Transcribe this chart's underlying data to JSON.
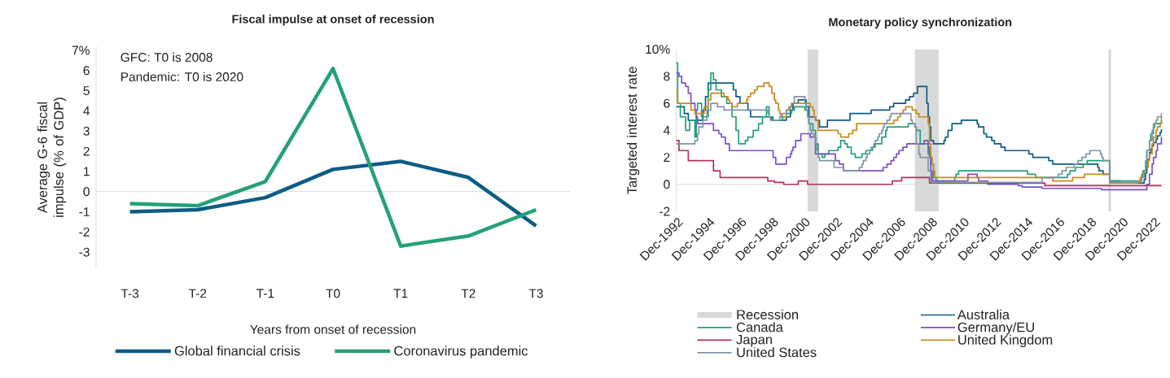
{
  "chart_data": [
    {
      "type": "line",
      "title": "Fiscal impulse at onset of recession",
      "xlabel": "Years from onset of recession",
      "ylabel": "Average G-6 fiscal impulse (% of GDP)",
      "categories": [
        "T-3",
        "T-2",
        "T-1",
        "T0",
        "T1",
        "T2",
        "T3"
      ],
      "ylim": [
        -3.8,
        7.2
      ],
      "yticks": [
        -3,
        -2,
        -1,
        0,
        1,
        2,
        3,
        4,
        5,
        6,
        {
          "value": 7,
          "label": "7%"
        }
      ],
      "annotations": [
        "GFC: T0 is 2008",
        "Pandemic: T0 is 2020"
      ],
      "ref_lines": [
        {
          "axis": "y",
          "value": 0,
          "color": "#d9d9d9"
        }
      ],
      "legend": "bottom",
      "series": [
        {
          "name": "Global financial crisis",
          "color": "#0d5c84",
          "values": [
            -1.0,
            -0.9,
            -0.3,
            1.1,
            1.5,
            0.7,
            -1.7
          ]
        },
        {
          "name": "Coronavirus pandemic",
          "color": "#25a07a",
          "values": [
            -0.6,
            -0.7,
            0.5,
            6.1,
            -2.7,
            -2.2,
            -0.9
          ]
        }
      ]
    },
    {
      "type": "step",
      "title": "Monetary policy synchronization",
      "ylabel": "Targeted interest rate",
      "xlim": [
        "1992-12",
        "2023-08"
      ],
      "xticks": [
        {
          "value": "1992-12",
          "label": "Dec-1992"
        },
        {
          "value": "1994-12",
          "label": "Dec-1994"
        },
        {
          "value": "1996-12",
          "label": "Dec-1996"
        },
        {
          "value": "1998-12",
          "label": "Dec-1998"
        },
        {
          "value": "2000-12",
          "label": "Dec-2000"
        },
        {
          "value": "2002-12",
          "label": "Dec-2002"
        },
        {
          "value": "2004-12",
          "label": "Dec-2004"
        },
        {
          "value": "2006-12",
          "label": "Dec-2006"
        },
        {
          "value": "2008-12",
          "label": "Dec-2008"
        },
        {
          "value": "2010-12",
          "label": "Dec-2010"
        },
        {
          "value": "2012-12",
          "label": "Dec-2012"
        },
        {
          "value": "2014-12",
          "label": "Dec-2014"
        },
        {
          "value": "2016-12",
          "label": "Dec-2016"
        },
        {
          "value": "2018-12",
          "label": "Dec-2018"
        },
        {
          "value": "2020-12",
          "label": "Dec-2020"
        },
        {
          "value": "2022-12",
          "label": "Dec-2022"
        }
      ],
      "ylim": [
        -2,
        10
      ],
      "yticks": [
        -2,
        0,
        2,
        4,
        6,
        8,
        {
          "value": 10,
          "label": "10%"
        }
      ],
      "bands": [
        {
          "axis": "x",
          "from": "2001-03",
          "to": "2001-11",
          "label": "Recession",
          "color": "#d9d9d9"
        },
        {
          "axis": "x",
          "from": "2007-12",
          "to": "2009-06",
          "color": "#d9d9d9"
        },
        {
          "axis": "x",
          "from": "2020-02",
          "to": "2020-04",
          "color": "#d9d9d9"
        }
      ],
      "ref_lines": [
        {
          "axis": "y",
          "value": 0,
          "color": "#d9d9d9"
        }
      ],
      "legend": "bottom",
      "series": [
        {
          "name": "Australia",
          "color": "#0d5c84",
          "x": [
            "1992-12",
            "1993-06",
            "1993-09",
            "1994-08",
            "1994-10",
            "1994-12",
            "1996-07",
            "1996-09",
            "1996-12",
            "1997-06",
            "1997-08",
            "1998-12",
            "1999-11",
            "2000-02",
            "2000-04",
            "2000-08",
            "2001-02",
            "2001-04",
            "2001-09",
            "2001-12",
            "2002-06",
            "2003-11",
            "2005-03",
            "2006-05",
            "2006-08",
            "2007-05",
            "2007-08",
            "2007-11",
            "2008-02",
            "2008-09",
            "2008-10",
            "2008-11",
            "2008-12",
            "2009-02",
            "2009-10",
            "2009-11",
            "2010-01",
            "2010-04",
            "2010-11",
            "2011-11",
            "2011-12",
            "2012-04",
            "2012-06",
            "2012-10",
            "2012-12",
            "2013-05",
            "2013-08",
            "2015-02",
            "2015-05",
            "2016-05",
            "2016-08",
            "2019-06",
            "2019-07",
            "2019-10",
            "2020-03",
            "2020-11",
            "2022-05",
            "2022-06",
            "2022-07",
            "2022-08",
            "2022-09",
            "2022-10",
            "2022-11",
            "2022-12",
            "2023-02",
            "2023-03",
            "2023-05",
            "2023-06"
          ],
          "values": [
            5.75,
            5.25,
            4.75,
            5.5,
            6.5,
            7.5,
            7.0,
            6.5,
            6.0,
            5.5,
            5.0,
            4.75,
            5.0,
            5.5,
            6.0,
            6.25,
            5.75,
            5.0,
            4.75,
            4.25,
            4.75,
            5.25,
            5.5,
            5.75,
            6.0,
            6.25,
            6.5,
            6.75,
            7.25,
            6.0,
            5.0,
            4.25,
            3.25,
            3.0,
            3.25,
            3.5,
            4.0,
            4.5,
            4.75,
            4.5,
            4.25,
            3.75,
            3.5,
            3.25,
            3.0,
            2.75,
            2.5,
            2.25,
            2.0,
            1.75,
            1.5,
            1.25,
            1.0,
            0.75,
            0.25,
            0.1,
            0.35,
            0.85,
            1.35,
            1.85,
            2.35,
            2.6,
            2.85,
            3.1,
            3.35,
            3.6,
            3.85,
            4.1
          ]
        },
        {
          "name": "Canada",
          "color": "#22a07a",
          "x": [
            "1992-12",
            "1993-01",
            "1993-03",
            "1993-07",
            "1993-10",
            "1994-02",
            "1994-03",
            "1994-04",
            "1994-07",
            "1994-12",
            "1995-02",
            "1995-04",
            "1995-06",
            "1995-10",
            "1996-02",
            "1996-06",
            "1996-09",
            "1996-11",
            "1997-04",
            "1997-06",
            "1997-10",
            "1998-02",
            "1998-05",
            "1998-08",
            "1998-10",
            "1999-01",
            "1999-08",
            "1999-11",
            "2000-03",
            "2000-05",
            "2001-01",
            "2001-03",
            "2001-04",
            "2001-07",
            "2001-09",
            "2001-11",
            "2002-02",
            "2002-04",
            "2002-07",
            "2003-02",
            "2003-04",
            "2003-07",
            "2003-09",
            "2003-12",
            "2004-03",
            "2004-08",
            "2004-11",
            "2005-04",
            "2005-06",
            "2005-11",
            "2006-02",
            "2006-03",
            "2007-07",
            "2007-12",
            "2008-01",
            "2008-04",
            "2008-10",
            "2008-12",
            "2009-02",
            "2009-04",
            "2010-06",
            "2010-07",
            "2010-09",
            "2015-01",
            "2015-07",
            "2017-07",
            "2017-09",
            "2018-01",
            "2018-07",
            "2018-10",
            "2020-03",
            "2022-03",
            "2022-04",
            "2022-06",
            "2022-07",
            "2022-09",
            "2022-10",
            "2022-12",
            "2023-01",
            "2023-06"
          ],
          "values": [
            9.0,
            6.0,
            5.0,
            4.0,
            4.75,
            3.5,
            5.5,
            6.0,
            5.0,
            7.0,
            8.25,
            7.75,
            7.0,
            6.5,
            6.0,
            5.0,
            4.0,
            3.0,
            3.25,
            3.5,
            4.0,
            4.5,
            5.0,
            5.75,
            5.0,
            4.75,
            5.0,
            5.25,
            5.5,
            5.75,
            5.5,
            5.0,
            4.5,
            4.0,
            3.0,
            2.25,
            2.0,
            2.25,
            2.5,
            2.75,
            3.25,
            3.0,
            2.75,
            2.25,
            2.0,
            2.25,
            2.5,
            2.75,
            3.0,
            3.5,
            4.0,
            4.25,
            4.5,
            4.25,
            4.0,
            3.0,
            2.25,
            1.5,
            0.5,
            0.25,
            0.5,
            0.75,
            1.0,
            0.75,
            0.5,
            0.75,
            1.0,
            1.25,
            1.5,
            1.75,
            0.25,
            0.5,
            1.0,
            1.5,
            2.5,
            3.25,
            3.75,
            4.25,
            4.5,
            4.75
          ]
        },
        {
          "name": "Germany/EU",
          "color": "#7b4fc9",
          "x": [
            "1992-12",
            "1993-02",
            "1993-04",
            "1993-07",
            "1993-09",
            "1993-11",
            "1994-02",
            "1994-03",
            "1994-04",
            "1995-04",
            "1995-08",
            "1995-10",
            "1996-01",
            "1996-04",
            "1999-01",
            "1999-03",
            "1999-11",
            "2000-02",
            "2000-03",
            "2000-04",
            "2000-06",
            "2000-10",
            "2001-05",
            "2001-09",
            "2002-12",
            "2003-03",
            "2003-06",
            "2005-12",
            "2006-03",
            "2006-06",
            "2006-08",
            "2006-10",
            "2006-12",
            "2007-03",
            "2007-06",
            "2008-07",
            "2008-10",
            "2008-11",
            "2008-12",
            "2009-01",
            "2011-04",
            "2011-11",
            "2011-12",
            "2012-07",
            "2014-06",
            "2014-09",
            "2015-12",
            "2019-09",
            "2022-07",
            "2022-09",
            "2022-11",
            "2022-12",
            "2023-02",
            "2023-03",
            "2023-06"
          ],
          "values": [
            8.25,
            8.0,
            7.5,
            7.25,
            6.75,
            6.0,
            5.5,
            5.0,
            4.5,
            4.0,
            3.75,
            3.5,
            3.0,
            2.5,
            2.0,
            1.5,
            2.0,
            2.25,
            2.5,
            2.75,
            3.25,
            3.75,
            3.5,
            2.25,
            1.75,
            1.5,
            1.0,
            1.25,
            1.5,
            1.75,
            2.0,
            2.25,
            2.5,
            2.75,
            3.0,
            3.25,
            2.75,
            2.0,
            1.0,
            0.25,
            0.75,
            0.5,
            0.25,
            0.0,
            -0.1,
            -0.2,
            -0.3,
            -0.4,
            0.0,
            0.75,
            1.5,
            2.0,
            2.5,
            3.0,
            3.5
          ]
        },
        {
          "name": "Japan",
          "color": "#b5305a",
          "x": [
            "1992-12",
            "1993-02",
            "1993-09",
            "1995-04",
            "1995-09",
            "1998-09",
            "1999-02",
            "1999-09",
            "2000-08",
            "2001-03",
            "2006-07",
            "2007-02",
            "2008-11",
            "2016-02",
            "2023-06"
          ],
          "values": [
            3.25,
            2.5,
            1.75,
            1.0,
            0.5,
            0.25,
            0.15,
            0.0,
            0.25,
            0.0,
            0.25,
            0.5,
            0.1,
            -0.1,
            -0.1
          ]
        },
        {
          "name": "United Kingdom",
          "color": "#c98a1f",
          "x": [
            "1992-12",
            "1993-01",
            "1993-11",
            "1994-02",
            "1994-09",
            "1994-12",
            "1995-02",
            "1995-12",
            "1996-03",
            "1996-04",
            "1996-06",
            "1996-10",
            "1997-05",
            "1997-06",
            "1997-08",
            "1997-11",
            "1998-01",
            "1998-06",
            "1998-10",
            "1998-12",
            "1999-02",
            "1999-03",
            "1999-05",
            "1999-06",
            "1999-07",
            "1999-11",
            "2000-01",
            "2000-03",
            "2001-05",
            "2001-07",
            "2001-08",
            "2001-09",
            "2001-11",
            "2003-02",
            "2003-04",
            "2003-10",
            "2004-01",
            "2004-04",
            "2006-08",
            "2006-11",
            "2007-01",
            "2007-03",
            "2007-05",
            "2007-10",
            "2008-01",
            "2008-03",
            "2008-10",
            "2008-11",
            "2008-12",
            "2009-01",
            "2009-02",
            "2009-03",
            "2016-08",
            "2017-11",
            "2018-08",
            "2020-03",
            "2021-12",
            "2022-02",
            "2022-03",
            "2022-05",
            "2022-06",
            "2022-08",
            "2022-09",
            "2022-11",
            "2022-12",
            "2023-02",
            "2023-03",
            "2023-05",
            "2023-06"
          ],
          "values": [
            7.0,
            6.0,
            5.5,
            5.25,
            5.75,
            6.25,
            6.75,
            6.5,
            6.25,
            6.0,
            5.75,
            6.0,
            6.25,
            6.5,
            6.75,
            7.0,
            7.25,
            7.5,
            7.25,
            6.75,
            6.25,
            6.0,
            5.5,
            5.25,
            5.0,
            5.5,
            5.75,
            6.0,
            5.75,
            5.5,
            5.0,
            4.75,
            4.0,
            3.75,
            3.5,
            3.75,
            4.0,
            4.5,
            4.75,
            5.0,
            5.25,
            5.5,
            5.75,
            5.5,
            5.25,
            5.0,
            4.5,
            3.0,
            2.0,
            1.5,
            1.0,
            0.5,
            0.25,
            0.5,
            0.75,
            0.1,
            0.25,
            0.5,
            0.75,
            1.0,
            1.25,
            1.75,
            2.25,
            3.0,
            3.5,
            4.0,
            4.25,
            4.5,
            5.0
          ]
        },
        {
          "name": "United States",
          "color": "#7f95a3",
          "x": [
            "1992-12",
            "1994-02",
            "1994-04",
            "1994-05",
            "1994-08",
            "1994-11",
            "1995-02",
            "1995-07",
            "1995-12",
            "1998-09",
            "1998-10",
            "1998-11",
            "1999-06",
            "1999-08",
            "1999-11",
            "2000-02",
            "2000-03",
            "2000-05",
            "2001-01",
            "2001-02",
            "2001-03",
            "2001-04",
            "2001-05",
            "2001-06",
            "2001-08",
            "2001-09",
            "2001-10",
            "2001-11",
            "2001-12",
            "2002-11",
            "2003-06",
            "2004-06",
            "2004-08",
            "2004-09",
            "2004-11",
            "2004-12",
            "2005-02",
            "2005-03",
            "2005-05",
            "2005-06",
            "2005-08",
            "2005-09",
            "2005-11",
            "2005-12",
            "2006-01",
            "2006-03",
            "2006-05",
            "2006-06",
            "2007-09",
            "2007-10",
            "2007-12",
            "2008-01",
            "2008-03",
            "2008-04",
            "2008-10",
            "2008-12",
            "2015-12",
            "2016-12",
            "2017-03",
            "2017-06",
            "2017-12",
            "2018-03",
            "2018-06",
            "2018-09",
            "2018-12",
            "2019-08",
            "2019-09",
            "2019-10",
            "2020-03",
            "2022-03",
            "2022-05",
            "2022-06",
            "2022-07",
            "2022-09",
            "2022-11",
            "2022-12",
            "2023-02",
            "2023-03",
            "2023-06"
          ],
          "values": [
            3.0,
            3.25,
            3.75,
            4.25,
            4.75,
            5.5,
            6.0,
            5.75,
            5.5,
            5.25,
            5.0,
            4.75,
            5.0,
            5.25,
            5.5,
            5.75,
            6.0,
            6.5,
            6.0,
            5.5,
            5.0,
            4.5,
            4.0,
            3.75,
            3.5,
            3.0,
            2.5,
            2.0,
            1.75,
            1.25,
            1.0,
            1.25,
            1.5,
            1.75,
            2.0,
            2.25,
            2.5,
            2.75,
            3.0,
            3.25,
            3.5,
            3.75,
            4.0,
            4.25,
            4.5,
            4.75,
            5.0,
            5.25,
            4.75,
            4.5,
            4.25,
            3.0,
            2.25,
            2.0,
            1.0,
            0.15,
            0.5,
            0.75,
            1.0,
            1.25,
            1.5,
            1.75,
            2.0,
            2.25,
            2.5,
            2.25,
            2.0,
            1.75,
            0.15,
            0.5,
            1.0,
            1.75,
            2.5,
            3.25,
            4.0,
            4.5,
            4.75,
            5.0,
            5.25
          ]
        }
      ]
    }
  ]
}
